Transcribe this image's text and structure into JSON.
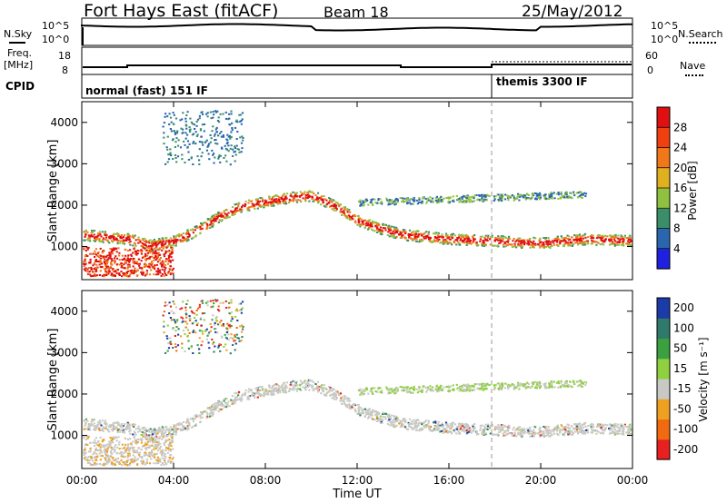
{
  "header": {
    "station": "Fort Hays East (fitACF)",
    "beam": "Beam 18",
    "date": "25/May/2012"
  },
  "summary_panels": {
    "nsky_label": "N.Sky",
    "nsearch_label": "N.Search",
    "noise_ticks": [
      "10^5",
      "10^0"
    ],
    "freq_label": "Freq.",
    "freq_unit": "[MHz]",
    "freq_ticks": [
      "18",
      "8"
    ],
    "nave_label": "Nave",
    "nave_ticks": [
      "60",
      "0"
    ],
    "cpid_label": "CPID",
    "cpid_modes": [
      {
        "name": "normal (fast) 151 IF",
        "start": "00:00"
      },
      {
        "name": "themis 3300 IF",
        "start": "18:00"
      }
    ]
  },
  "axes": {
    "xlabel": "Time UT",
    "x_ticks": [
      "00:00",
      "04:00",
      "08:00",
      "12:00",
      "16:00",
      "20:00",
      "00:00"
    ],
    "ylabel": "Slant Range [km]",
    "y_ticks": [
      "1000",
      "2000",
      "3000",
      "4000"
    ]
  },
  "colorbars": {
    "power": {
      "label": "Power [dB]",
      "ticks": [
        "4",
        "8",
        "12",
        "16",
        "20",
        "24",
        "28"
      ],
      "colors": [
        "#2020e0",
        "#2a66b0",
        "#3a8f6a",
        "#8fc040",
        "#e0b020",
        "#f07818",
        "#f04010",
        "#e01010"
      ]
    },
    "velocity": {
      "label": "Velocity [m s⁻¹]",
      "ticks": [
        "200",
        "100",
        "50",
        "15",
        "-15",
        "-50",
        "-100",
        "-200"
      ],
      "colors": [
        "#1c3aa8",
        "#2f7a6a",
        "#3aa040",
        "#8fd040",
        "#c8c8c4",
        "#f0a020",
        "#f06a10",
        "#e82020"
      ]
    }
  },
  "chart_data": [
    {
      "type": "heatmap",
      "title": "Power [dB]",
      "xlabel": "Time UT",
      "ylabel": "Slant Range [km]",
      "xlim": [
        0,
        24
      ],
      "ylim": [
        200,
        4500
      ],
      "colorbar_range": [
        0,
        30
      ],
      "main_band_km": [
        [
          0.0,
          1300
        ],
        [
          1.0,
          1250
        ],
        [
          2.0,
          1200
        ],
        [
          3.0,
          1050
        ],
        [
          4.0,
          1150
        ],
        [
          5.0,
          1400
        ],
        [
          6.0,
          1750
        ],
        [
          7.0,
          2000
        ],
        [
          8.0,
          2100
        ],
        [
          9.0,
          2200
        ],
        [
          10.0,
          2250
        ],
        [
          11.0,
          2000
        ],
        [
          12.0,
          1650
        ],
        [
          13.0,
          1450
        ],
        [
          14.0,
          1300
        ],
        [
          16.0,
          1200
        ],
        [
          18.0,
          1150
        ],
        [
          20.0,
          1100
        ],
        [
          22.0,
          1200
        ],
        [
          24.0,
          1150
        ]
      ]
    },
    {
      "type": "heatmap",
      "title": "Velocity [m s⁻¹]",
      "xlabel": "Time UT",
      "ylabel": "Slant Range [km]",
      "xlim": [
        0,
        24
      ],
      "ylim": [
        200,
        4500
      ],
      "colorbar_range": [
        -200,
        200
      ],
      "main_band_km": [
        [
          0.0,
          1300
        ],
        [
          1.0,
          1250
        ],
        [
          2.0,
          1200
        ],
        [
          3.0,
          1050
        ],
        [
          4.0,
          1150
        ],
        [
          5.0,
          1400
        ],
        [
          6.0,
          1750
        ],
        [
          7.0,
          2000
        ],
        [
          8.0,
          2100
        ],
        [
          9.0,
          2200
        ],
        [
          10.0,
          2250
        ],
        [
          11.0,
          2000
        ],
        [
          12.0,
          1650
        ],
        [
          13.0,
          1450
        ],
        [
          14.0,
          1300
        ],
        [
          16.0,
          1200
        ],
        [
          18.0,
          1150
        ],
        [
          20.0,
          1100
        ],
        [
          22.0,
          1200
        ],
        [
          24.0,
          1150
        ]
      ]
    }
  ]
}
